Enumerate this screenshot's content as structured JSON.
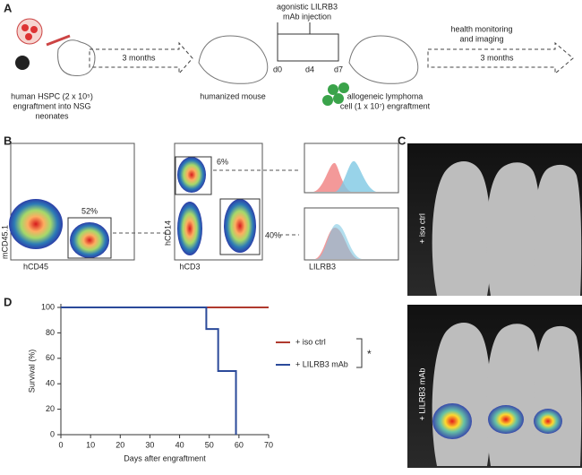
{
  "panel_a": {
    "label": "A",
    "hspc_caption": [
      "human HSPC (2 x 10⁵)",
      "engraftment into NSG",
      "neonates"
    ],
    "arrow1": "3 months",
    "mouse_caption": "humanized mouse",
    "injection_caption": [
      "agonistic LILRB3",
      "mAb injection"
    ],
    "days": [
      "d0",
      "d4",
      "d7"
    ],
    "lymphoma_caption": [
      "allogeneic lymphoma",
      "cell (1 x 10⁷) engraftment"
    ],
    "monitor_caption": [
      "health monitoring",
      "and imaging"
    ],
    "arrow2": "3 months"
  },
  "panel_b": {
    "label": "B",
    "plot1": {
      "y_label": "mCD45.1",
      "x_label": "hCD45",
      "gate": "52%"
    },
    "plot2": {
      "y_label": "hCD14",
      "x_label": "hCD3",
      "gate_top": "6%",
      "gate_right": "40%"
    },
    "histogram_label": "LILRB3"
  },
  "panel_c": {
    "label": "C",
    "top_label": "+ iso ctrl",
    "bottom_label": "+ LILRB3 mAb"
  },
  "panel_d": {
    "label": "D",
    "significance": "*"
  },
  "chart_data": {
    "type": "line",
    "xlabel": "Days after engraftment",
    "ylabel": "Survival (%)",
    "xlim": [
      0,
      70
    ],
    "ylim": [
      0,
      100
    ],
    "xticks": [
      0,
      10,
      20,
      30,
      40,
      50,
      60,
      70
    ],
    "yticks": [
      0,
      20,
      40,
      60,
      80,
      100
    ],
    "series": [
      {
        "name": "+ iso ctrl",
        "color": "#b03a2e",
        "x": [
          0,
          70
        ],
        "values": [
          100,
          100
        ]
      },
      {
        "name": "+ LILRB3 mAb",
        "color": "#2b4a9a",
        "x": [
          0,
          49,
          49,
          53,
          53,
          59,
          59
        ],
        "values": [
          100,
          100,
          83,
          83,
          50,
          50,
          0
        ]
      }
    ]
  }
}
